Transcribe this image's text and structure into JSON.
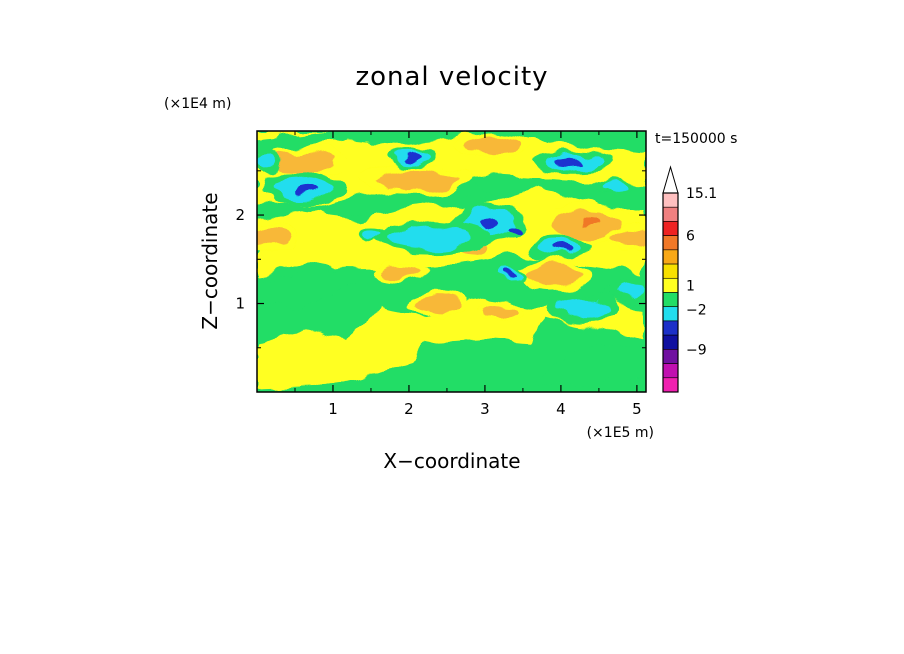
{
  "chart_data": {
    "type": "heatmap",
    "title": "zonal velocity",
    "xlabel": "X−coordinate",
    "ylabel": "Z−coordinate",
    "x_unit": "(×1E5 m)",
    "y_unit": "(×1E4 m)",
    "time_label": "t=150000 s",
    "xlim": [
      0,
      5.12
    ],
    "ylim": [
      0,
      2.95
    ],
    "x_ticks": [
      {
        "value": 1,
        "label": "1"
      },
      {
        "value": 2,
        "label": "2"
      },
      {
        "value": 3,
        "label": "3"
      },
      {
        "value": 4,
        "label": "4"
      },
      {
        "value": 5,
        "label": "5"
      }
    ],
    "y_ticks": [
      {
        "value": 1,
        "label": "1"
      },
      {
        "value": 2,
        "label": "2"
      }
    ],
    "colorbar": {
      "labels": [
        {
          "value": 15.1,
          "label": "15.1"
        },
        {
          "value": 6,
          "label": "6"
        },
        {
          "value": 1,
          "label": "1"
        },
        {
          "value": -2,
          "label": "−2"
        },
        {
          "value": -9,
          "label": "−9"
        }
      ],
      "bands": [
        {
          "color": "#ffc0c0"
        },
        {
          "color": "#f08080"
        },
        {
          "color": "#ee2222"
        },
        {
          "color": "#f07828"
        },
        {
          "color": "#f8a818"
        },
        {
          "color": "#f8e000"
        },
        {
          "color": "#ffff20"
        },
        {
          "color": "#22dd66"
        },
        {
          "color": "#22ddee"
        },
        {
          "color": "#1c30c8"
        },
        {
          "color": "#1010a0"
        },
        {
          "color": "#7010a0"
        },
        {
          "color": "#c010b0"
        },
        {
          "color": "#f020b0"
        }
      ]
    },
    "field_colors": {
      "yellow": "#ffff20",
      "green": "#22dd66",
      "orange": "#f8b838",
      "cyan": "#22ddee",
      "blue": "#1c30d0",
      "red_orange": "#f07828"
    },
    "features": [
      {
        "kind": "positive",
        "x": 0.6,
        "z": 2.6,
        "rx": 0.45,
        "rz": 0.12
      },
      {
        "kind": "positive",
        "x": 2.1,
        "z": 2.4,
        "rx": 0.55,
        "rz": 0.12
      },
      {
        "kind": "positive",
        "x": 3.1,
        "z": 2.8,
        "rx": 0.35,
        "rz": 0.09
      },
      {
        "kind": "positive",
        "x": 0.2,
        "z": 1.75,
        "rx": 0.25,
        "rz": 0.12
      },
      {
        "kind": "positive",
        "x": 4.35,
        "z": 1.9,
        "rx": 0.45,
        "rz": 0.17
      },
      {
        "kind": "strong_positive",
        "x": 4.4,
        "z": 1.93,
        "rx": 0.12,
        "rz": 0.05
      },
      {
        "kind": "positive",
        "x": 4.9,
        "z": 1.75,
        "rx": 0.22,
        "rz": 0.1
      },
      {
        "kind": "positive",
        "x": 3.9,
        "z": 1.32,
        "rx": 0.35,
        "rz": 0.12
      },
      {
        "kind": "positive",
        "x": 2.85,
        "z": 1.65,
        "rx": 0.2,
        "rz": 0.08
      },
      {
        "kind": "positive",
        "x": 1.9,
        "z": 1.35,
        "rx": 0.25,
        "rz": 0.08
      },
      {
        "kind": "positive",
        "x": 2.4,
        "z": 1.0,
        "rx": 0.3,
        "rz": 0.1
      },
      {
        "kind": "positive",
        "x": 3.2,
        "z": 0.9,
        "rx": 0.2,
        "rz": 0.06
      },
      {
        "kind": "negative",
        "x": 0.6,
        "z": 2.3,
        "rx": 0.4,
        "rz": 0.13
      },
      {
        "kind": "strong_negative",
        "x": 0.65,
        "z": 2.28,
        "rx": 0.16,
        "rz": 0.05
      },
      {
        "kind": "negative",
        "x": 2.05,
        "z": 2.65,
        "rx": 0.22,
        "rz": 0.07
      },
      {
        "kind": "strong_negative",
        "x": 2.05,
        "z": 2.65,
        "rx": 0.12,
        "rz": 0.04
      },
      {
        "kind": "negative",
        "x": 4.2,
        "z": 2.6,
        "rx": 0.4,
        "rz": 0.08
      },
      {
        "kind": "strong_negative",
        "x": 4.1,
        "z": 2.6,
        "rx": 0.16,
        "rz": 0.04
      },
      {
        "kind": "negative",
        "x": 3.05,
        "z": 1.9,
        "rx": 0.35,
        "rz": 0.15
      },
      {
        "kind": "strong_negative",
        "x": 3.05,
        "z": 1.9,
        "rx": 0.13,
        "rz": 0.06
      },
      {
        "kind": "strong_negative",
        "x": 3.4,
        "z": 1.83,
        "rx": 0.08,
        "rz": 0.04
      },
      {
        "kind": "negative",
        "x": 3.95,
        "z": 1.63,
        "rx": 0.3,
        "rz": 0.1
      },
      {
        "kind": "strong_negative",
        "x": 4.0,
        "z": 1.6,
        "rx": 0.14,
        "rz": 0.05
      },
      {
        "kind": "negative",
        "x": 2.3,
        "z": 1.75,
        "rx": 0.55,
        "rz": 0.12
      },
      {
        "kind": "negative",
        "x": 3.35,
        "z": 1.32,
        "rx": 0.15,
        "rz": 0.06
      },
      {
        "kind": "strong_negative",
        "x": 3.35,
        "z": 1.32,
        "rx": 0.06,
        "rz": 0.03
      },
      {
        "kind": "negative",
        "x": 4.3,
        "z": 0.95,
        "rx": 0.35,
        "rz": 0.11
      },
      {
        "kind": "negative",
        "x": 4.9,
        "z": 1.15,
        "rx": 0.22,
        "rz": 0.08
      },
      {
        "kind": "negative",
        "x": 0.15,
        "z": 2.6,
        "rx": 0.15,
        "rz": 0.1
      },
      {
        "kind": "negative",
        "x": 1.5,
        "z": 1.8,
        "rx": 0.15,
        "rz": 0.06
      },
      {
        "kind": "negative",
        "x": 4.7,
        "z": 2.3,
        "rx": 0.15,
        "rz": 0.06
      }
    ]
  }
}
